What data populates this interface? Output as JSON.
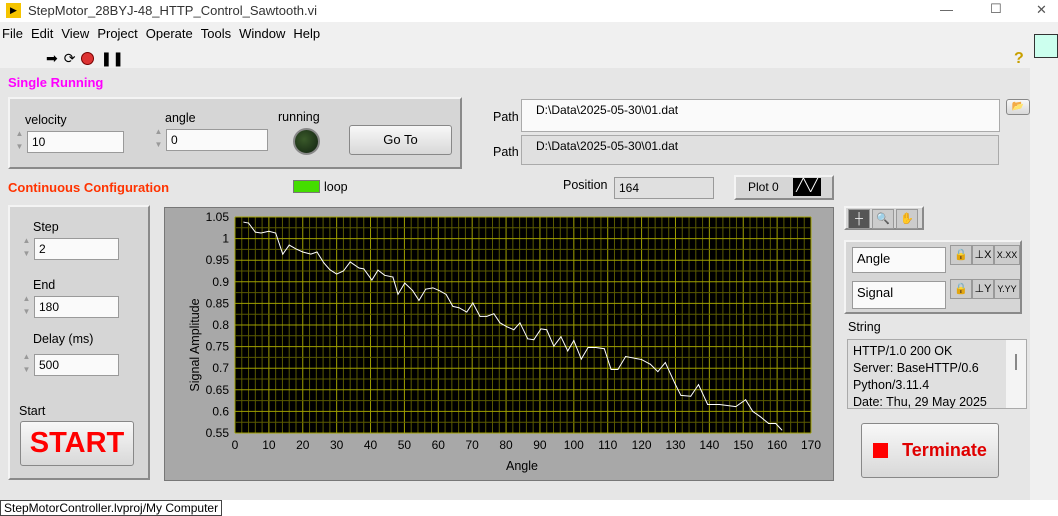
{
  "window": {
    "title": "StepMotor_28BYJ-48_HTTP_Control_Sawtooth.vi",
    "minimize": "—",
    "maximize": "☐",
    "close": "✕"
  },
  "menu": [
    "File",
    "Edit",
    "View",
    "Project",
    "Operate",
    "Tools",
    "Window",
    "Help"
  ],
  "toolbar": {
    "icons": [
      "run-arrow-icon",
      "run-continuously-icon",
      "abort-icon",
      "pause-icon"
    ],
    "help": "?"
  },
  "single": {
    "title": "Single Running",
    "velocity_label": "velocity",
    "velocity": "10",
    "angle_label": "angle",
    "angle": "0",
    "running_label": "running",
    "running": false,
    "goto": "Go To"
  },
  "paths": {
    "label1": "Path",
    "value1": "D:\\Data\\2025-05-30\\01.dat",
    "label2": "Path",
    "value2": "D:\\Data\\2025-05-30\\01.dat"
  },
  "continuous": {
    "title": "Continuous Configuration",
    "loop_label": "loop",
    "loop": true,
    "step_label": "Step",
    "step": "2",
    "end_label": "End",
    "end": "180",
    "delay_label": "Delay (ms)",
    "delay": "500",
    "start_label": "Start",
    "start_button": "START"
  },
  "position": {
    "label": "Position",
    "value": "164"
  },
  "plot_legend": {
    "name": "Plot 0"
  },
  "scale_legend": {
    "x_name": "Angle",
    "y_name": "Signal",
    "x_fmt": "X.XX",
    "y_fmt": "Y.YY"
  },
  "string_indicator": {
    "label": "String",
    "lines": [
      "HTTP/1.0 200 OK",
      "Server: BaseHTTP/0.6",
      "Python/3.11.4",
      "Date: Thu, 29 May 2025"
    ]
  },
  "terminate": "Terminate",
  "status": "StepMotorController.lvproj/My Computer",
  "colors": {
    "section_pink": "#ff00ff",
    "section_orange": "#ff3300",
    "start_red": "#ff0000",
    "plot_bg": "#000000",
    "grid": "#a0a000",
    "trace": "#ffffff",
    "loop_led": "#44dd00"
  },
  "chart_data": {
    "type": "line",
    "xlabel": "Angle",
    "ylabel": "Signal Amplitude",
    "xlim": [
      0,
      170
    ],
    "ylim": [
      0.55,
      1.05
    ],
    "grid": true,
    "x_ticks": [
      0,
      10,
      20,
      30,
      40,
      50,
      60,
      70,
      80,
      90,
      100,
      110,
      120,
      130,
      140,
      150,
      160,
      170
    ],
    "y_ticks": [
      "0.55",
      "0.6",
      "0.65",
      "0.7",
      "0.75",
      "0.8",
      "0.85",
      "0.9",
      "0.95",
      "1",
      "1.05"
    ],
    "series": [
      {
        "points": [
          [
            2.6,
            1.038
          ],
          [
            4,
            1.036
          ],
          [
            6,
            1.015
          ],
          [
            7.7,
            1.013
          ],
          [
            10,
            1.017
          ],
          [
            12,
            1.013
          ],
          [
            14.1,
            0.964
          ],
          [
            16,
            0.985
          ],
          [
            18,
            0.976
          ],
          [
            20,
            0.969
          ],
          [
            22.4,
            0.964
          ],
          [
            24.2,
            0.969
          ],
          [
            26.2,
            0.944
          ],
          [
            28,
            0.928
          ],
          [
            30,
            0.918
          ],
          [
            32,
            0.925
          ],
          [
            34,
            0.946
          ],
          [
            36.6,
            0.932
          ],
          [
            38,
            0.93
          ],
          [
            40.4,
            0.904
          ],
          [
            42.2,
            0.927
          ],
          [
            44.2,
            0.915
          ],
          [
            46.6,
            0.911
          ],
          [
            48.1,
            0.871
          ],
          [
            50.1,
            0.897
          ],
          [
            52.4,
            0.88
          ],
          [
            54.3,
            0.857
          ],
          [
            56.3,
            0.883
          ],
          [
            58.4,
            0.886
          ],
          [
            60.2,
            0.88
          ],
          [
            62.3,
            0.871
          ],
          [
            64.3,
            0.843
          ],
          [
            66.1,
            0.84
          ],
          [
            68.4,
            0.83
          ],
          [
            70.2,
            0.851
          ],
          [
            72.3,
            0.82
          ],
          [
            74.3,
            0.82
          ],
          [
            76.4,
            0.826
          ],
          [
            78.2,
            0.805
          ],
          [
            80.2,
            0.796
          ],
          [
            82.3,
            0.789
          ],
          [
            84.1,
            0.805
          ],
          [
            86.4,
            0.768
          ],
          [
            88.2,
            0.766
          ],
          [
            90.3,
            0.791
          ],
          [
            92,
            0.789
          ],
          [
            94.1,
            0.751
          ],
          [
            96.2,
            0.773
          ],
          [
            98.2,
            0.74
          ],
          [
            100,
            0.764
          ],
          [
            102.2,
            0.721
          ],
          [
            104.2,
            0.748
          ],
          [
            106.5,
            0.748
          ],
          [
            109,
            0.745
          ],
          [
            111,
            0.697
          ],
          [
            113,
            0.697
          ],
          [
            115.3,
            0.727
          ],
          [
            120,
            0.72
          ],
          [
            122.6,
            0.709
          ],
          [
            124.8,
            0.692
          ],
          [
            127,
            0.713
          ],
          [
            130,
            0.662
          ],
          [
            131.6,
            0.637
          ],
          [
            134.5,
            0.635
          ],
          [
            136.8,
            0.662
          ],
          [
            139.5,
            0.616
          ],
          [
            143,
            0.616
          ],
          [
            147.8,
            0.611
          ],
          [
            150.7,
            0.627
          ],
          [
            152.8,
            0.6
          ],
          [
            155,
            0.588
          ],
          [
            157.5,
            0.572
          ],
          [
            159.6,
            0.572
          ],
          [
            161.4,
            0.557
          ]
        ]
      }
    ]
  }
}
